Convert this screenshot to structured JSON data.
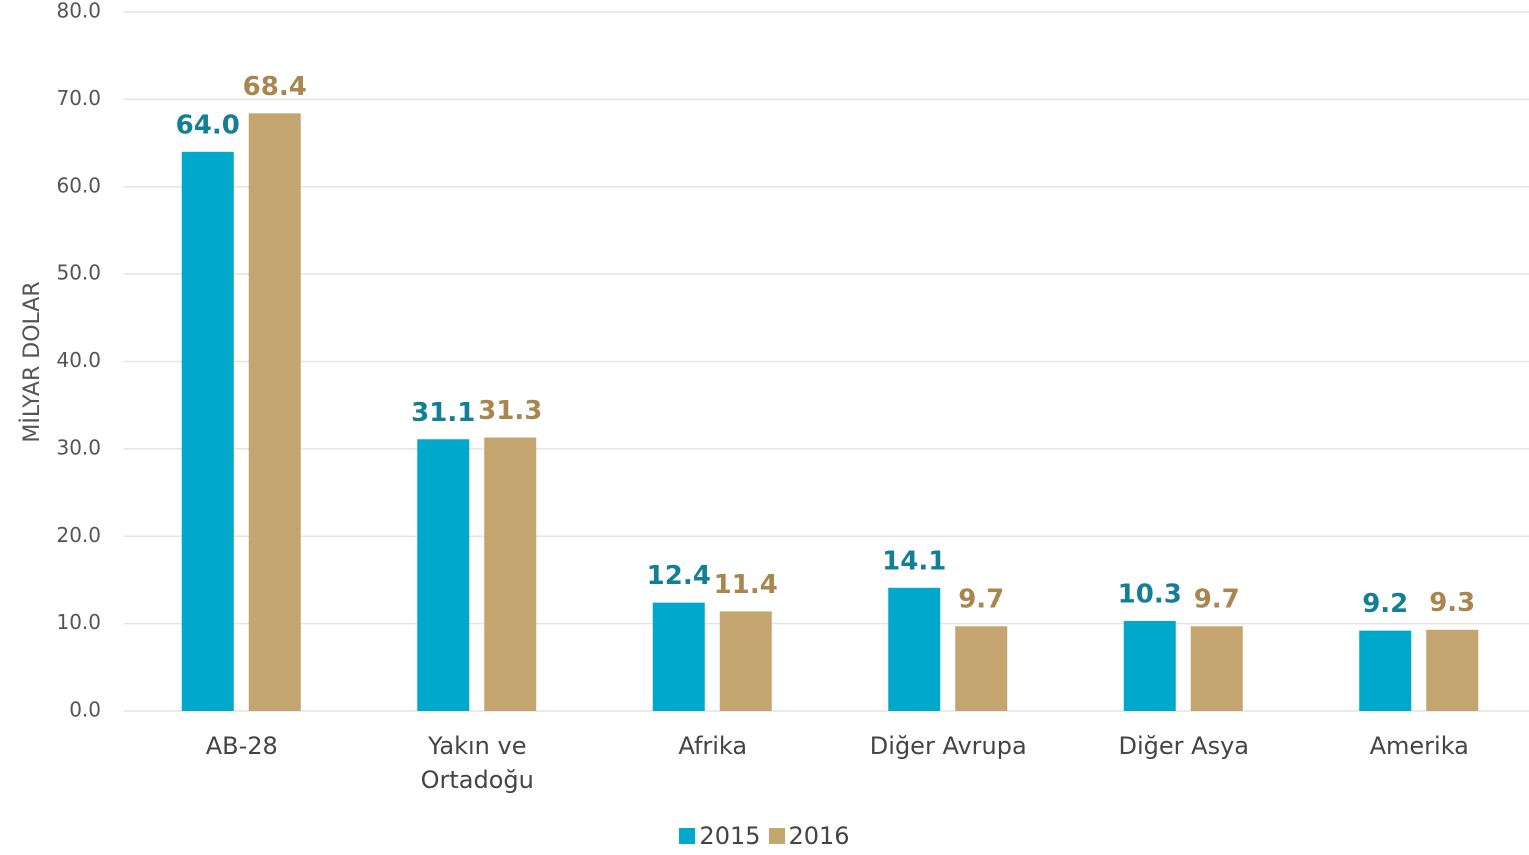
{
  "chart_data": {
    "type": "bar",
    "y_label": "MİLYAR DOLAR",
    "categories": [
      "AB-28",
      "Yakın ve Ortadoğu",
      "Afrika",
      "Diğer Avrupa",
      "Diğer Asya",
      "Amerika"
    ],
    "series": [
      {
        "name": "2015",
        "color": "#00a9cb",
        "label_color": "#137f97",
        "values": [
          64.0,
          31.1,
          12.4,
          14.1,
          10.3,
          9.2
        ],
        "value_labels": [
          "64.0",
          "31.1",
          "12.4",
          "14.1",
          "10.3",
          "9.2"
        ]
      },
      {
        "name": "2016",
        "color": "#c4a46f",
        "label_color": "#a8864d",
        "values": [
          68.4,
          31.3,
          11.4,
          9.7,
          9.7,
          9.3
        ],
        "value_labels": [
          "68.4",
          "31.3",
          "11.4",
          "9.7",
          "9.7",
          "9.3"
        ]
      }
    ],
    "ylim": [
      0,
      80
    ],
    "yticks": [
      {
        "value": 0,
        "label": "0.0"
      },
      {
        "value": 10,
        "label": "10.0"
      },
      {
        "value": 20,
        "label": "20.0"
      },
      {
        "value": 30,
        "label": "30.0"
      },
      {
        "value": 40,
        "label": "40.0"
      },
      {
        "value": 50,
        "label": "50.0"
      },
      {
        "value": 60,
        "label": "60.0"
      },
      {
        "value": 70,
        "label": "70.0"
      },
      {
        "value": 80,
        "label": "80.0"
      }
    ],
    "grid": true,
    "legend": "bottom"
  }
}
